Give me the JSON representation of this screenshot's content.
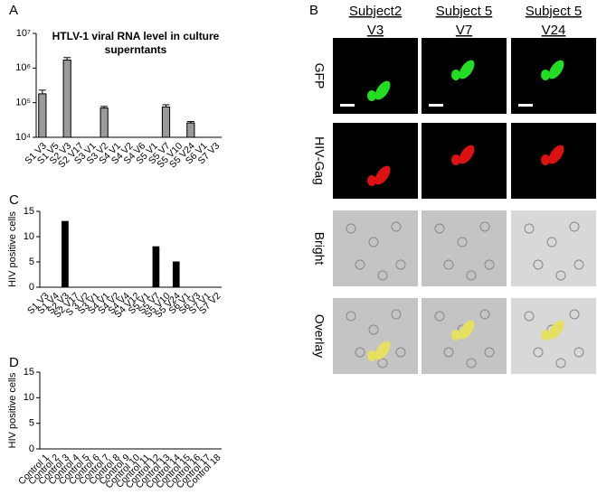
{
  "panel_labels": [
    "A",
    "B",
    "C",
    "D"
  ],
  "chart_data": [
    {
      "type": "bar",
      "title": "HTLV-1 viral RNA level in culture superntants",
      "categories": [
        "S1 V3",
        "S1 V5",
        "S2 V3",
        "S2 V17",
        "S3 V1",
        "S3 V2",
        "S4 V1",
        "S4 V2",
        "S4 V6",
        "S5 V1",
        "S5 V7",
        "S5 V10",
        "S5 V24",
        "S6 V1",
        "S7 V3"
      ],
      "values": [
        180000,
        null,
        1700000,
        null,
        null,
        70000,
        null,
        null,
        null,
        null,
        75000,
        null,
        26000,
        null,
        null
      ],
      "errors": [
        50000,
        null,
        300000,
        null,
        null,
        8000,
        null,
        null,
        null,
        null,
        12000,
        null,
        2500,
        null,
        null
      ],
      "color": "#9a9a9a",
      "log_scale": true,
      "ylim": [
        10000,
        10000000
      ],
      "yticks": [
        {
          "value": 10000,
          "label": "10⁴"
        },
        {
          "value": 100000,
          "label": "10⁵"
        },
        {
          "value": 1000000,
          "label": "10⁶"
        },
        {
          "value": 10000000,
          "label": "10⁷"
        }
      ]
    },
    {
      "type": "bar",
      "ylabel": "HIV positive cells",
      "categories": [
        "S1 V3",
        "S1 V4",
        "S2 V3",
        "S2 V17",
        "S 3 V2",
        "S3 V1",
        "S4 V1",
        "S4 V2",
        "S4 V4",
        "S4 V12",
        "S5 V1",
        "S5 V7",
        "S5 V10",
        "S5 V24",
        "S6 V1",
        "S6 V3",
        "S7 V1",
        "S7 V2"
      ],
      "values": [
        0,
        0,
        13,
        0,
        0,
        0,
        0,
        0,
        0,
        0,
        0,
        8,
        0,
        5,
        0,
        0,
        0,
        0
      ],
      "color": "#000000",
      "ylim": [
        0,
        15
      ],
      "yticks": [
        0,
        5,
        10,
        15
      ]
    },
    {
      "type": "bar",
      "ylabel": "HIV positive cells",
      "categories": [
        "Control 1",
        "Control 2",
        "Control 3",
        "Control 4",
        "Control 5",
        "Control 6",
        "Control 7",
        "Control 8",
        "Control 9",
        "Control 10",
        "Control 11",
        "Control 12",
        "Control 13",
        "Control 14",
        "Control 15",
        "Control 16",
        "Control 17",
        "Control 18"
      ],
      "values": [
        0,
        0,
        0,
        0,
        0,
        0,
        0,
        0,
        0,
        0,
        0,
        0,
        0,
        0,
        0,
        0,
        0,
        0
      ],
      "color": "#000000",
      "ylim": [
        0,
        15
      ],
      "yticks": [
        0,
        5,
        10,
        15
      ]
    }
  ],
  "microscopy": {
    "columns": [
      {
        "subject": "Subject2",
        "visit": "V3"
      },
      {
        "subject": "Subject 5",
        "visit": "V7"
      },
      {
        "subject": "Subject 5",
        "visit": "V24"
      }
    ],
    "rows": [
      "GFP",
      "HIV-Gag",
      "Bright",
      "Overlay"
    ]
  }
}
